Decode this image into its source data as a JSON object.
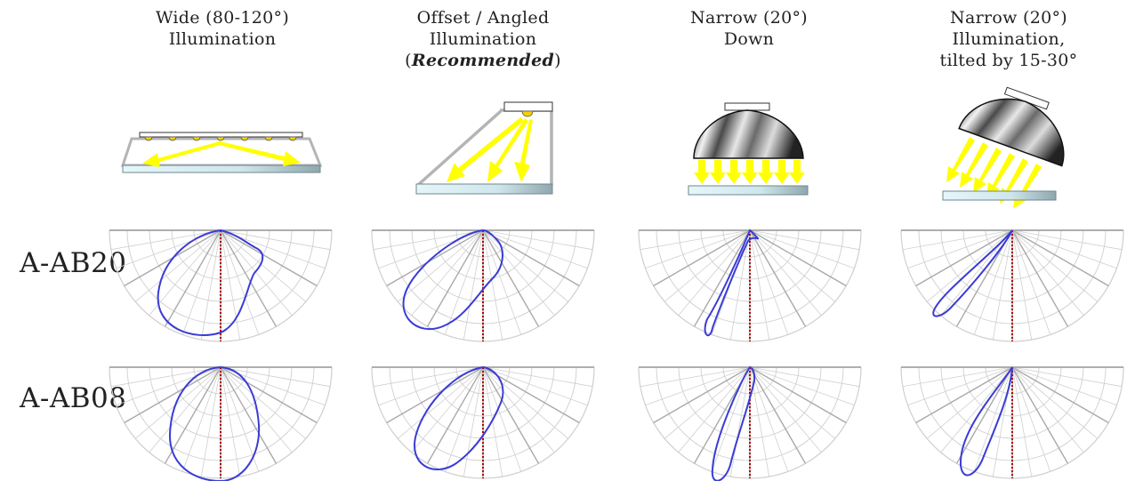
{
  "columns": [
    {
      "title_lines": [
        "Wide (80-120°)",
        "Illumination"
      ]
    },
    {
      "title_lines": [
        "Offset / Angled",
        "Illumination"
      ],
      "emphasis": {
        "open": "(",
        "word": "Recommended",
        "close": ")"
      }
    },
    {
      "title_lines": [
        "Narrow (20°)",
        "Down"
      ]
    },
    {
      "title_lines": [
        "Narrow (20°)",
        "Illumination,",
        "tilted by 15-30°"
      ]
    }
  ],
  "rows": [
    {
      "label": "A-AB20"
    },
    {
      "label": "A-AB08"
    }
  ],
  "colors": {
    "arrow": "#ffff00",
    "lens": "#d6eef4",
    "housing": "#b0b0b0",
    "curve": "#3b3bd6",
    "axis": "#b00000",
    "grid": "#cfcfcf"
  }
}
